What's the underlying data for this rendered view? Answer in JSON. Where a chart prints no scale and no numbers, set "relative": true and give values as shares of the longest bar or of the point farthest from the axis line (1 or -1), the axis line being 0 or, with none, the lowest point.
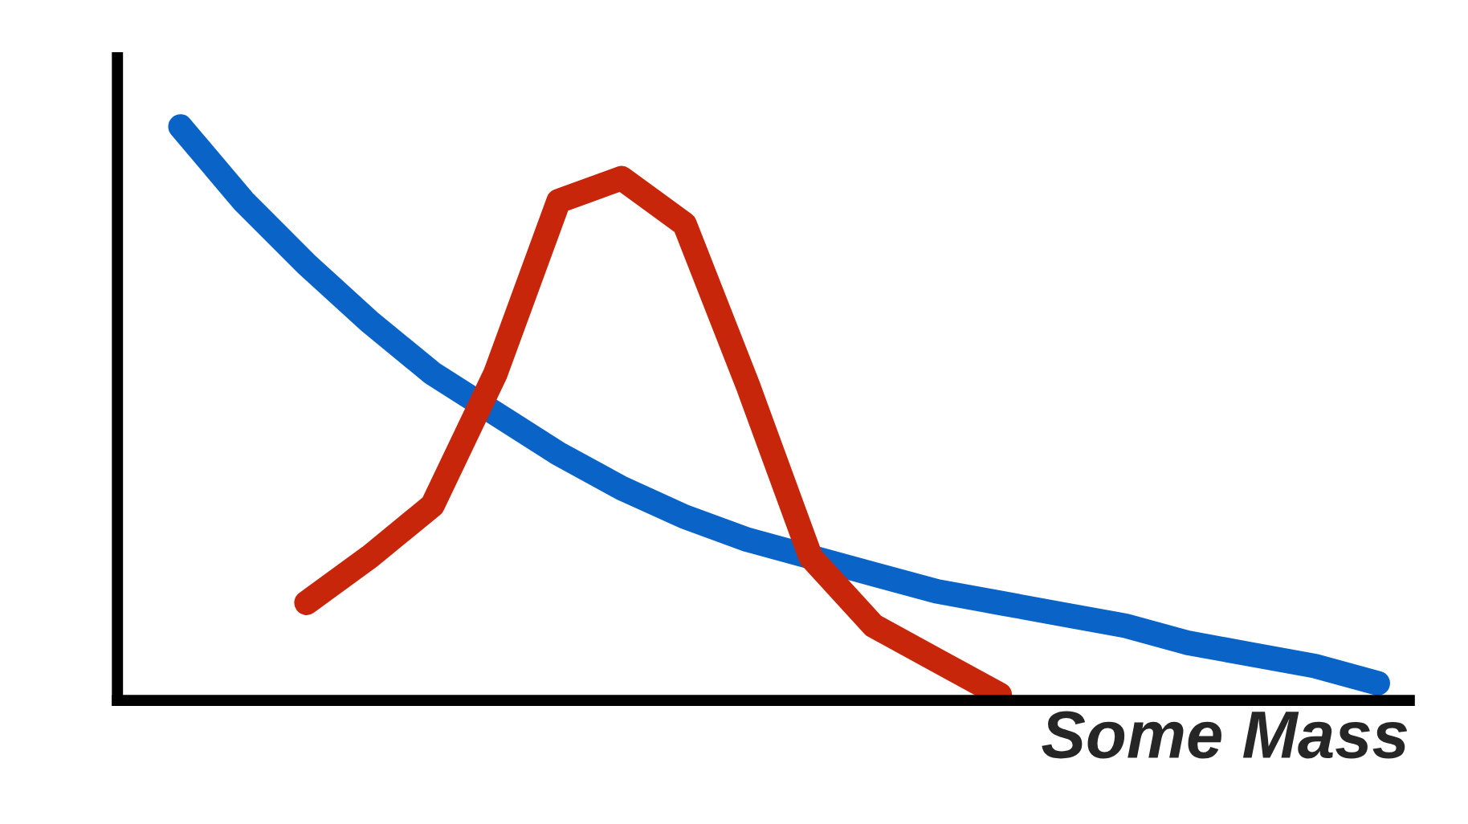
{
  "chart_data": {
    "type": "line",
    "relative": true,
    "xlabel": "Some Mass",
    "categories": [
      null,
      null,
      null,
      null,
      null,
      null,
      null,
      null,
      null,
      null,
      null,
      null,
      null,
      null,
      null,
      null,
      null,
      null,
      null,
      null
    ],
    "series": [
      {
        "color": "#0a64c8",
        "values": [
          1,
          0.87,
          0.76,
          0.66,
          0.57,
          0.5,
          0.43,
          0.37,
          0.32,
          0.28,
          0.25,
          0.22,
          0.19,
          0.17,
          0.15,
          0.13,
          0.1,
          0.08,
          0.06,
          0.03
        ]
      },
      {
        "color": "#c8260a",
        "values": [
          null,
          null,
          0.17,
          0.25,
          0.34,
          0.57,
          0.87,
          0.91,
          0.83,
          0.55,
          0.25,
          0.13,
          0.07,
          0.01,
          null,
          null,
          null,
          null,
          null,
          null
        ]
      }
    ],
    "tick_labels": false
  }
}
